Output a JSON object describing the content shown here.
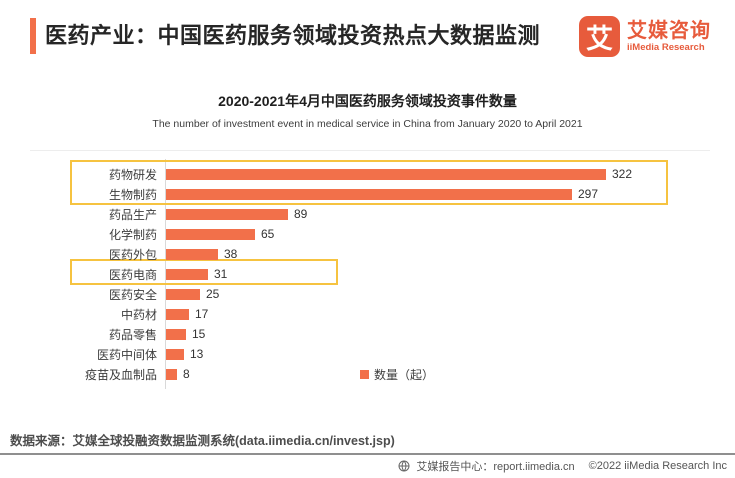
{
  "header": {
    "title": "医药产业：中国医药服务领域投资热点大数据监测",
    "logo": {
      "mark_char": "艾",
      "name_cn": "艾媒咨询",
      "name_en": "iiMedia Research"
    }
  },
  "chart_data": {
    "type": "bar",
    "orientation": "horizontal",
    "title": "2020-2021年4月中国医药服务领域投资事件数量",
    "subtitle": "The number of investment event in medical service in China from January 2020 to April 2021",
    "categories": [
      "药物研发",
      "生物制药",
      "药品生产",
      "化学制药",
      "医药外包",
      "医药电商",
      "医药安全",
      "中药材",
      "药品零售",
      "医药中间体",
      "疫苗及血制品"
    ],
    "values": [
      322,
      297,
      89,
      65,
      38,
      31,
      25,
      17,
      15,
      13,
      8
    ],
    "xlabel": "",
    "ylabel": "",
    "xlim": [
      0,
      340
    ],
    "grid": false,
    "legend": "数量（起）",
    "legend_position": "bottom-center",
    "bar_color": "#F2704A",
    "highlight_color": "#F6C340",
    "annotations": [
      {
        "type": "highlight-box",
        "rows": [
          0,
          1
        ],
        "note": "top two categories highlighted"
      },
      {
        "type": "highlight-box",
        "rows": [
          5,
          5
        ],
        "note": "医药电商 highlighted"
      }
    ]
  },
  "footer": {
    "source": "数据来源：艾媒全球投融资数据监测系统(data.iimedia.cn/invest.jsp)",
    "report_center": "艾媒报告中心：report.iimedia.cn",
    "copyright": "©2022  iiMedia Research  Inc"
  },
  "colors": {
    "accent": "#F2704A",
    "brand": "#E75B3C",
    "highlight": "#F6C340"
  }
}
